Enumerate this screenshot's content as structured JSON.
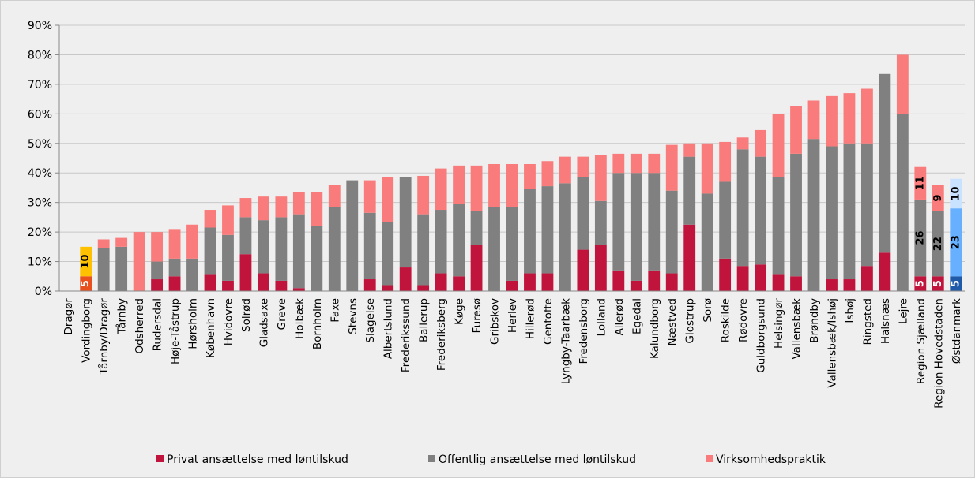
{
  "chart_data": {
    "type": "bar",
    "stacked": true,
    "categories": [
      "Dragør",
      "Vordingborg",
      "Tårnby/Dragør",
      "Tårnby",
      "Odsherred",
      "Rudersdal",
      "Høje-Tåstrup",
      "Hørsholm",
      "København",
      "Hvidovre",
      "Solrød",
      "Gladsaxe",
      "Greve",
      "Holbæk",
      "Bornholm",
      "Faxe",
      "Stevns",
      "Slagelse",
      "Albertslund",
      "Frederikssund",
      "Ballerup",
      "Frederiksberg",
      "Køge",
      "Furesø",
      "Gribskov",
      "Herlev",
      "Hillerød",
      "Gentofte",
      "Lyngby-Taarbæk",
      "Fredensborg",
      "Lolland",
      "Allerød",
      "Egedal",
      "Kalundborg",
      "Næstved",
      "Glostrup",
      "Sorø",
      "Roskilde",
      "Rødovre",
      "Guldborgsund",
      "Helsingør",
      "Vallensbæk",
      "Brøndby",
      "Vallensbæk/Ishøj",
      "Ishøj",
      "Ringsted",
      "Halsnæs",
      "Lejre",
      "Region Sjælland",
      "Region Hovedstaden",
      "Østdanmark"
    ],
    "series": [
      {
        "name": "Privat ansættelse med løntilskud",
        "color": "#c0143c",
        "values": [
          0,
          5,
          0,
          0,
          0,
          4,
          5,
          0,
          5.5,
          3.5,
          12.5,
          6,
          3.5,
          1,
          0,
          0,
          0,
          4,
          2,
          8,
          2,
          6,
          5,
          15.5,
          0,
          3.5,
          6,
          6,
          0,
          14,
          15.5,
          7,
          3.5,
          7,
          6,
          22.5,
          0,
          11,
          8.5,
          9,
          5.5,
          5,
          0,
          4,
          4,
          8.5,
          13,
          0,
          5,
          5,
          5
        ]
      },
      {
        "name": "Offentlig ansættelse med løntilskud",
        "color": "#808080",
        "values": [
          0,
          0,
          14.5,
          15,
          0,
          6,
          6,
          11,
          16,
          15.5,
          12.5,
          18,
          21.5,
          25,
          22,
          28.5,
          37.5,
          22.5,
          21.5,
          30.5,
          24,
          21.5,
          24.5,
          11.5,
          28.5,
          25,
          28.5,
          29.5,
          36.5,
          24.5,
          15,
          33,
          36.5,
          33,
          28,
          23,
          33,
          26,
          39.5,
          36.5,
          33,
          41.5,
          51.5,
          45,
          46,
          41.5,
          60.5,
          60,
          26,
          22,
          23
        ]
      },
      {
        "name": "Virksomhedspraktik",
        "color": "#fa7b7b",
        "values": [
          0,
          10,
          3,
          3,
          20,
          10,
          10,
          11.5,
          6,
          10,
          6.5,
          8,
          7,
          7.5,
          11.5,
          7.5,
          0,
          11,
          15,
          0,
          13,
          14,
          13,
          15.5,
          14.5,
          14.5,
          8.5,
          8.5,
          9,
          7,
          15.5,
          6.5,
          6.5,
          6.5,
          15.5,
          4.5,
          17,
          13.5,
          4,
          9,
          21.5,
          16,
          13,
          17,
          17,
          18.5,
          0,
          20,
          11,
          9,
          10
        ]
      }
    ],
    "highlight_colors": [
      {
        "category": "Vordingborg",
        "colors": [
          "#e8501e",
          "#808080",
          "#ffc000"
        ]
      },
      {
        "category": "Østdanmark",
        "colors": [
          "#1f5aa8",
          "#66b0ff",
          "#c8e2ff"
        ]
      }
    ],
    "data_labels": [
      {
        "category": "Vordingborg",
        "labels": [
          "5",
          "",
          "10"
        ],
        "colors": [
          "#ffffff",
          "#000000",
          "#000000"
        ]
      },
      {
        "category": "Region Sjælland",
        "labels": [
          "5",
          "26",
          "11"
        ],
        "colors": [
          "#ffffff",
          "#000000",
          "#000000"
        ]
      },
      {
        "category": "Region Hovedstaden",
        "labels": [
          "5",
          "22",
          "9"
        ],
        "colors": [
          "#ffffff",
          "#000000",
          "#000000"
        ]
      },
      {
        "category": "Østdanmark",
        "labels": [
          "5",
          "23",
          "10"
        ],
        "colors": [
          "#ffffff",
          "#000000",
          "#000000"
        ]
      }
    ],
    "ylim": [
      0,
      90
    ],
    "yticks": [
      0,
      10,
      20,
      30,
      40,
      50,
      60,
      70,
      80,
      90
    ],
    "ytick_labels": [
      "0%",
      "10%",
      "20%",
      "30%",
      "40%",
      "50%",
      "60%",
      "70%",
      "80%",
      "90%"
    ],
    "grid": true,
    "legend_position": "bottom",
    "title": "",
    "xlabel": "",
    "ylabel": ""
  }
}
